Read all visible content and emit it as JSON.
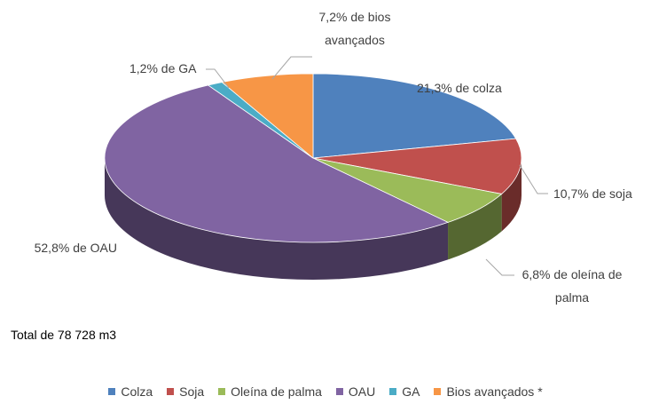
{
  "chart_data": {
    "type": "pie",
    "categories": [
      "Colza",
      "Soja",
      "Oleína de palma",
      "OAU",
      "GA",
      "Bios avançados *"
    ],
    "values": [
      21.3,
      10.7,
      6.8,
      52.8,
      1.2,
      7.2
    ],
    "value_labels": [
      "21,3% de colza",
      "10,7% de soja",
      "6,8% de oleína de palma",
      "52,8% de OAU",
      "1,2% de GA",
      "7,2% de bios avançados"
    ],
    "colors": [
      "#4f81bd",
      "#c0504d",
      "#9bbb59",
      "#8064a2",
      "#4bacc6",
      "#f79646"
    ],
    "annotation": "Total de 78 728 m3",
    "legend": "bottom"
  }
}
